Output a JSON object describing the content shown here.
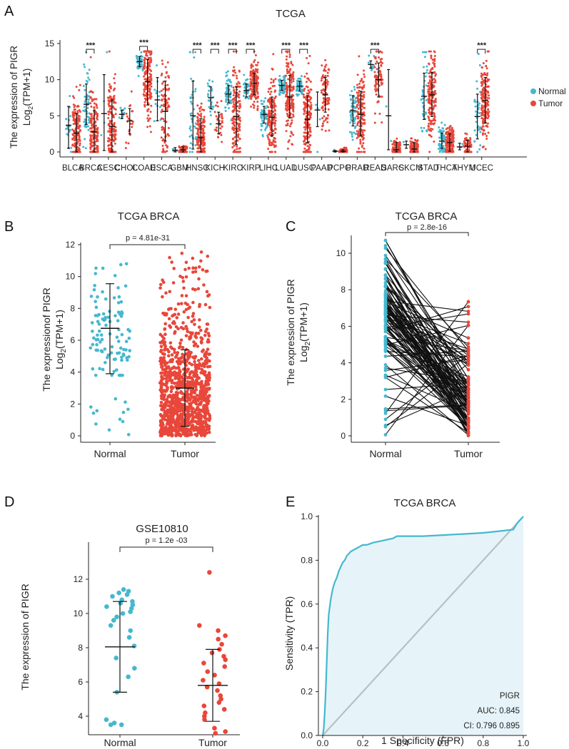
{
  "colors": {
    "normal": "#45b8cf",
    "tumor": "#e8473a",
    "roc": "#45b8cf",
    "roc_fill": "#e6f4f9",
    "diagonal": "#b9bfc3"
  },
  "panels": {
    "A": {
      "letter": "A",
      "title": "TCGA",
      "ylabel1": "The expression of PIGR",
      "ylabel2_pre": "Log",
      "ylabel2_sub": "2",
      "ylabel2_post": "(TPM+1)",
      "legend": [
        "Normal",
        "Tumor"
      ],
      "sig_label": "***"
    },
    "B": {
      "letter": "B",
      "title": "TCGA BRCA",
      "ylabel1": "The expressionof PIGR",
      "ylabel2_pre": "Log",
      "ylabel2_sub": "2",
      "ylabel2_post": "(TPM+1)",
      "pvalue": "p = 4.81e-31"
    },
    "C": {
      "letter": "C",
      "title": "TCGA BRCA",
      "ylabel1": "The expression  of PIGR",
      "ylabel2_pre": "Log",
      "ylabel2_sub": "2",
      "ylabel2_post": "(TPM+1)",
      "pvalue": "p = 2.8e-16"
    },
    "D": {
      "letter": "D",
      "title": "GSE10810",
      "ylabel": "The expression of PIGR",
      "pvalue": "p = 1.2e -03"
    },
    "E": {
      "letter": "E",
      "title": "TCGA BRCA",
      "xlabel": "1 Specificity (FPR)",
      "ylabel": "Sensitivity (TPR)",
      "gene": "PIGR",
      "auc": "AUC: 0.845",
      "ci": "CI: 0.796 0.895"
    }
  },
  "chart_data": [
    {
      "panel": "A",
      "type": "scatter",
      "title": "TCGA",
      "ylim": [
        0,
        15
      ],
      "yticks": [
        0,
        5,
        10,
        15
      ],
      "categories": [
        "BLCA",
        "BRCA",
        "CESC",
        "CHOL",
        "COAD",
        "ESCA",
        "GBM",
        "HNSC",
        "KICH",
        "KIRC",
        "KIRP",
        "LIHC",
        "LUAD",
        "LUSC",
        "PAAD",
        "PCPG",
        "PRAD",
        "READ",
        "SARC",
        "SKCM",
        "STAD",
        "THCA",
        "THYM",
        "UCEC"
      ],
      "series": [
        {
          "name": "Normal",
          "median": [
            3.7,
            6.6,
            5.3,
            5.2,
            12.5,
            7.2,
            0.2,
            5.0,
            7.5,
            8.0,
            8.5,
            5.2,
            9.2,
            9.1,
            5.8,
            0.1,
            5.7,
            12.1,
            5.0,
            1.0,
            7.7,
            1.5,
            0.7,
            4.9
          ],
          "sd_low": [
            0.5,
            3.8,
            0.2,
            4.6,
            11.8,
            4.3,
            0.0,
            0.4,
            6.0,
            6.8,
            7.6,
            4.0,
            8.5,
            8.4,
            3.5,
            0.0,
            3.6,
            11.6,
            0.3,
            0.5,
            4.5,
            0.5,
            0.3,
            1.8
          ],
          "sd_high": [
            6.3,
            9.4,
            10.7,
            5.8,
            13.2,
            10.3,
            0.6,
            9.8,
            9.0,
            9.2,
            9.4,
            6.3,
            9.9,
            9.8,
            8.3,
            0.2,
            7.8,
            12.6,
            11.4,
            1.5,
            10.9,
            2.6,
            1.2,
            8.0
          ]
        },
        {
          "name": "Tumor",
          "median": [
            2.6,
            2.8,
            3.5,
            4.3,
            9.7,
            5.6,
            0.3,
            2.0,
            3.9,
            4.9,
            9.5,
            4.8,
            7.6,
            4.5,
            7.9,
            0.1,
            5.2,
            10.0,
            0.3,
            0.4,
            7.9,
            1.3,
            0.8,
            7.1
          ],
          "sd_low": [
            0.0,
            0.0,
            0.0,
            2.5,
            6.5,
            1.5,
            0.0,
            0.0,
            2.5,
            1.0,
            7.9,
            2.2,
            4.7,
            1.3,
            5.5,
            0.0,
            2.2,
            7.6,
            0.0,
            0.0,
            4.9,
            0.1,
            0.0,
            4.0
          ],
          "sd_high": [
            5.3,
            5.7,
            7.2,
            6.0,
            12.8,
            9.8,
            0.7,
            4.6,
            5.5,
            9.0,
            10.9,
            7.6,
            10.6,
            7.8,
            10.3,
            0.3,
            8.4,
            12.3,
            1.3,
            1.3,
            11.0,
            2.5,
            1.6,
            10.3
          ]
        }
      ],
      "significant": [
        "BRCA",
        "COAD",
        "HNSC",
        "KICH",
        "KIRC",
        "KIRP",
        "LUAD",
        "LUSC",
        "READ",
        "UCEC"
      ],
      "legend": "right"
    },
    {
      "panel": "B",
      "type": "scatter",
      "title": "TCGA BRCA",
      "categories": [
        "Normal",
        "Tumor"
      ],
      "ylim": [
        0,
        12
      ],
      "yticks": [
        0,
        2,
        4,
        6,
        8,
        10,
        12
      ],
      "series": [
        {
          "name": "Normal",
          "mean": 6.75,
          "sd_low": 3.9,
          "sd_high": 9.55
        },
        {
          "name": "Tumor",
          "mean": 3.0,
          "sd_low": 0.6,
          "sd_high": 5.4
        }
      ]
    },
    {
      "panel": "C",
      "type": "line",
      "title": "TCGA BRCA",
      "categories": [
        "Normal",
        "Tumor"
      ],
      "ylim": [
        0,
        10
      ],
      "yticks": [
        0,
        2,
        4,
        6,
        8,
        10
      ],
      "paired_samples": 112
    },
    {
      "panel": "D",
      "type": "scatter",
      "title": "GSE10810",
      "categories": [
        "Normal",
        "Tumor"
      ],
      "ylim": [
        3.2,
        12.6
      ],
      "yticks": [
        4,
        6,
        8,
        10,
        12
      ],
      "series": [
        {
          "name": "Normal",
          "mean": 8.05,
          "sd_low": 5.4,
          "sd_high": 10.7,
          "values": [
            11.4,
            11.3,
            11.2,
            11.1,
            11.0,
            10.8,
            10.7,
            10.6,
            10.5,
            10.4,
            10.3,
            10.1,
            10.0,
            9.8,
            9.6,
            9.3,
            9.0,
            8.6,
            8.1,
            7.4,
            6.8,
            6.3,
            5.4,
            3.8,
            3.6,
            3.5,
            3.5
          ]
        },
        {
          "name": "Tumor",
          "mean": 5.8,
          "sd_low": 3.7,
          "sd_high": 7.9,
          "values": [
            12.4,
            9.3,
            9.0,
            8.7,
            8.5,
            8.2,
            7.9,
            7.7,
            7.5,
            7.3,
            7.1,
            6.9,
            6.6,
            6.4,
            6.1,
            5.9,
            5.7,
            5.5,
            5.2,
            5.0,
            4.8,
            4.6,
            4.4,
            4.2,
            4.0,
            3.8,
            3.3,
            3.1,
            3.0
          ]
        }
      ]
    },
    {
      "panel": "E",
      "type": "line",
      "title": "TCGA BRCA",
      "xlabel": "1 Specificity (FPR)",
      "ylabel": "Sensitivity (TPR)",
      "xlim": [
        0,
        1
      ],
      "ylim": [
        0,
        1
      ],
      "xticks": [
        0.0,
        0.2,
        0.4,
        0.6,
        0.8,
        1.0
      ],
      "yticks": [
        0.0,
        0.2,
        0.4,
        0.6,
        0.8,
        1.0
      ],
      "series": [
        {
          "name": "PIGR",
          "x": [
            0,
            0.005,
            0.01,
            0.015,
            0.02,
            0.025,
            0.03,
            0.04,
            0.05,
            0.06,
            0.07,
            0.08,
            0.09,
            0.1,
            0.11,
            0.12,
            0.13,
            0.14,
            0.16,
            0.18,
            0.2,
            0.22,
            0.25,
            0.3,
            0.35,
            0.37,
            0.45,
            0.5,
            0.6,
            0.7,
            0.8,
            0.85,
            0.9,
            0.95,
            0.97,
            1.0
          ],
          "y": [
            0,
            0.03,
            0.1,
            0.2,
            0.33,
            0.46,
            0.55,
            0.62,
            0.67,
            0.7,
            0.72,
            0.75,
            0.77,
            0.79,
            0.8,
            0.82,
            0.83,
            0.84,
            0.85,
            0.86,
            0.87,
            0.87,
            0.88,
            0.89,
            0.9,
            0.91,
            0.91,
            0.91,
            0.915,
            0.92,
            0.925,
            0.93,
            0.935,
            0.94,
            0.97,
            1.0
          ]
        }
      ],
      "auc": 0.845,
      "ci": [
        0.796,
        0.895
      ]
    }
  ]
}
